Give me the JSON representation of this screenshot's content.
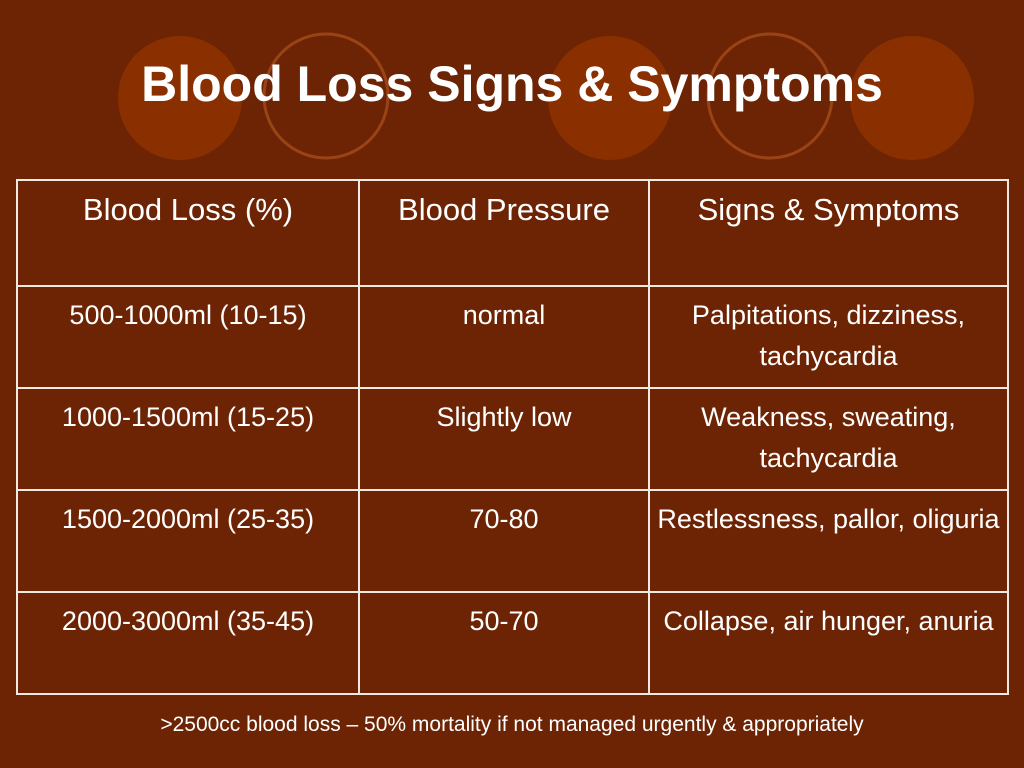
{
  "slide": {
    "title": "Blood Loss Signs & Symptoms",
    "colors": {
      "background": "#6d2404",
      "circle_fill": "#8a3000",
      "circle_outline": "#9a4416",
      "table_border": "#f3e9e3",
      "text": "#ffffff"
    },
    "table": {
      "headers": [
        "Blood Loss (%)",
        "Blood Pressure",
        "Signs & Symptoms"
      ],
      "rows": [
        [
          "500-1000ml (10-15)",
          "normal",
          "Palpitations, dizziness, tachycardia"
        ],
        [
          "1000-1500ml (15-25)",
          "Slightly low",
          "Weakness, sweating, tachycardia"
        ],
        [
          "1500-2000ml (25-35)",
          "70-80",
          "Restlessness, pallor, oliguria"
        ],
        [
          "2000-3000ml (35-45)",
          "50-70",
          "Collapse, air hunger, anuria"
        ]
      ]
    },
    "footnote": ">2500cc blood loss – 50% mortality if not managed urgently & appropriately"
  }
}
